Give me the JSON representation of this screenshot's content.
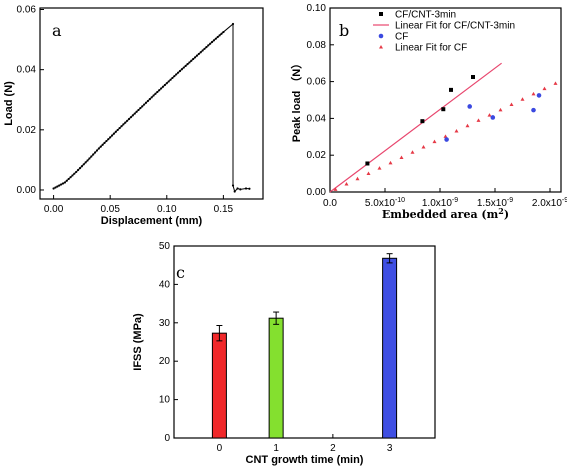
{
  "chart_data": [
    {
      "panel": "a",
      "type": "line",
      "xlabel": "Displacement (mm)",
      "ylabel": "Load (N)",
      "xlim": [
        -0.012,
        0.185
      ],
      "ylim": [
        -0.003,
        0.0605
      ],
      "xticks": [
        0.0,
        0.05,
        0.1,
        0.15
      ],
      "xtick_labels": [
        "0.00",
        "0.05",
        "0.10",
        "0.15"
      ],
      "yticks": [
        0.0,
        0.02,
        0.04,
        0.06
      ],
      "ytick_labels": [
        "0.00",
        "0.02",
        "0.04",
        "0.06"
      ],
      "series": [
        {
          "color": "#000000",
          "marker": "dot",
          "x": [
            0.0,
            0.01,
            0.02,
            0.03,
            0.04,
            0.05,
            0.06,
            0.07,
            0.08,
            0.09,
            0.1,
            0.11,
            0.12,
            0.13,
            0.14,
            0.15,
            0.1585,
            0.1585,
            0.16,
            0.1625,
            0.165,
            0.17,
            0.173
          ],
          "y": [
            0.0005,
            0.0025,
            0.006,
            0.0098,
            0.0138,
            0.0175,
            0.0212,
            0.0248,
            0.0284,
            0.032,
            0.0355,
            0.039,
            0.0424,
            0.0458,
            0.0492,
            0.0525,
            0.0552,
            0.0015,
            -0.0005,
            0.0005,
            0.0002,
            0.0005,
            0.0004
          ]
        }
      ]
    },
    {
      "panel": "b",
      "type": "scatter",
      "xlabel_main": "Embedded area (m",
      "xlabel_sup": "2",
      "xlabel_close": ")",
      "ylabel": "Peak load （N）",
      "xlim": [
        0,
        2.1e-09
      ],
      "ylim": [
        0,
        0.1
      ],
      "xticks": [
        0,
        5e-10,
        1e-09,
        1.5e-09,
        2e-09
      ],
      "xtick_labels": [
        {
          "base": "0.0",
          "exp": ""
        },
        {
          "base": "5.0x10",
          "exp": "-10"
        },
        {
          "base": "1.0x10",
          "exp": "-9"
        },
        {
          "base": "1.5x10",
          "exp": "-9"
        },
        {
          "base": "2.0x10",
          "exp": "-9"
        }
      ],
      "yticks": [
        0,
        0.02,
        0.04,
        0.06,
        0.08,
        0.1
      ],
      "ytick_labels": [
        "0.00",
        "0.02",
        "0.04",
        "0.06",
        "0.08",
        "0.10"
      ],
      "series": [
        {
          "name": "CF/CNT-3min",
          "marker": "square",
          "color": "#000000",
          "x": [
            3.4e-10,
            8.4e-10,
            1.03e-09,
            1.1e-09,
            1.3e-09
          ],
          "y": [
            0.0155,
            0.0385,
            0.045,
            0.0555,
            0.0625
          ]
        },
        {
          "name": "Linear Fit for CF/CNT-3min",
          "marker": "line",
          "color": "#e8466e",
          "x": [
            0,
            1.56e-09
          ],
          "y": [
            0,
            0.07
          ]
        },
        {
          "name": "CF",
          "marker": "circle",
          "color": "#3b49e0",
          "x": [
            1.06e-09,
            1.27e-09,
            1.48e-09,
            1.85e-09,
            1.9e-09
          ],
          "y": [
            0.0285,
            0.0465,
            0.0405,
            0.0445,
            0.0525
          ]
        },
        {
          "name": "Linear Fit for CF",
          "marker": "triangle",
          "color": "#e63946",
          "x": [
            0,
            2.1e-09
          ],
          "y": [
            0,
            0.0605
          ]
        }
      ],
      "legend_position": "top-right"
    },
    {
      "panel": "c",
      "type": "bar",
      "xlabel": "CNT growth time (min)",
      "ylabel": "IFSS (MPa)",
      "xlim": [
        -0.8,
        3.8
      ],
      "ylim": [
        0,
        50
      ],
      "xticks": [
        0,
        1,
        2,
        3
      ],
      "xtick_labels": [
        "0",
        "1",
        "2",
        "3"
      ],
      "yticks": [
        0,
        10,
        20,
        30,
        40,
        50
      ],
      "ytick_labels": [
        "0",
        "10",
        "20",
        "30",
        "40",
        "50"
      ],
      "bars": [
        {
          "x": 0,
          "value": 27.3,
          "error": 2.0,
          "color": "#f0282a"
        },
        {
          "x": 1,
          "value": 31.2,
          "error": 1.6,
          "color": "#84e02f"
        },
        {
          "x": 3,
          "value": 46.8,
          "error": 1.2,
          "color": "#3f4fe3"
        }
      ]
    }
  ],
  "labels": {
    "panel_a": "a",
    "panel_b": "b",
    "panel_c": "c"
  }
}
